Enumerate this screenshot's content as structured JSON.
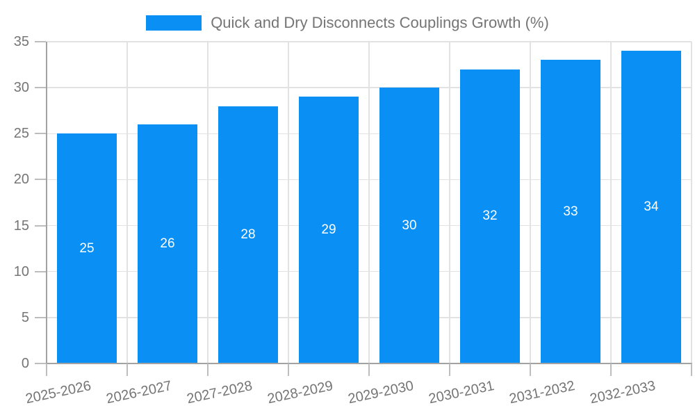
{
  "legend": {
    "label": "Quick and Dry Disconnects Couplings Growth (%)"
  },
  "chart_data": {
    "type": "bar",
    "title": "Quick and Dry Disconnects Couplings Growth (%)",
    "categories": [
      "2025-2026",
      "2026-2027",
      "2027-2028",
      "2028-2029",
      "2029-2030",
      "2030-2031",
      "2031-2032",
      "2032-2033"
    ],
    "values": [
      25,
      26,
      28,
      29,
      30,
      32,
      33,
      34
    ],
    "xlabel": "",
    "ylabel": "",
    "ylim": [
      0,
      35
    ],
    "yticks": [
      0,
      5,
      10,
      15,
      20,
      25,
      30,
      35
    ],
    "grid": true,
    "legend_position": "top",
    "bar_color": "#0a90f5",
    "value_label_color": "#ffffff",
    "axis_label_color": "#757575",
    "gridline_color": "#e2e2e2",
    "axis_line_color": "#a2a2a2",
    "tick_color": "#bdbdbd"
  }
}
